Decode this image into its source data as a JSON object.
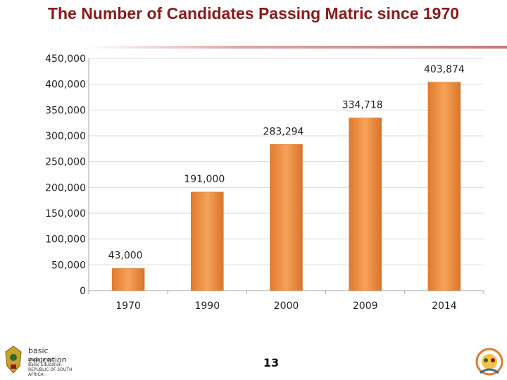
{
  "slide": {
    "title": "The Number of Candidates Passing Matric since 1970",
    "page_number": "13",
    "logo_left": {
      "brand": "basic education",
      "lines": [
        "Department:",
        "Basic Education",
        "REPUBLIC OF SOUTH AFRICA"
      ]
    },
    "logo_right": {
      "icon": "anniversary-emblem-icon"
    }
  },
  "colors": {
    "bar": "#f0913a",
    "bar_dark": "#d9742a",
    "title": "#8b1a1a",
    "grid": "#d9d9d9"
  },
  "chart_data": {
    "type": "bar",
    "categories": [
      "1970",
      "1990",
      "2000",
      "2009",
      "2014"
    ],
    "values": [
      43000,
      191000,
      283294,
      334718,
      403874
    ],
    "data_labels": [
      "43,000",
      "191,000",
      "283,294",
      "334,718",
      "403,874"
    ],
    "yticks": [
      "0",
      "50,000",
      "100,000",
      "150,000",
      "200,000",
      "250,000",
      "300,000",
      "350,000",
      "400,000",
      "450,000"
    ],
    "ylim": [
      0,
      450000
    ],
    "grid": true
  }
}
